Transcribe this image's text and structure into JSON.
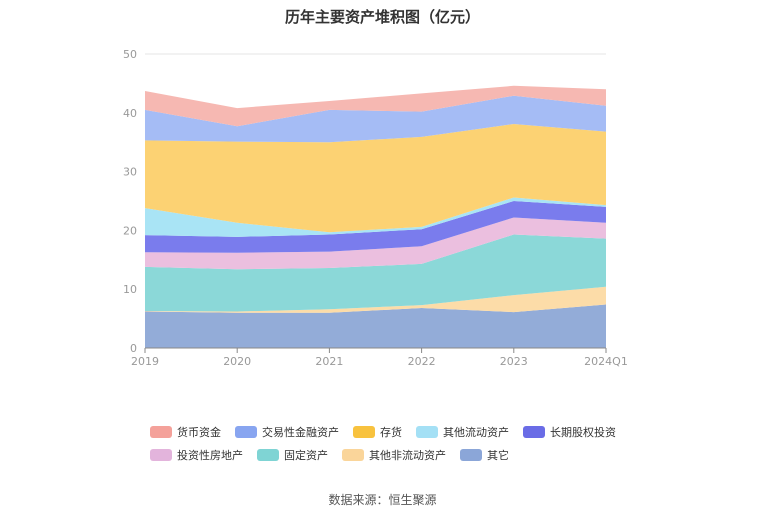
{
  "chart_data": {
    "type": "area",
    "stacked": true,
    "title": "历年主要资产堆积图（亿元）",
    "categories": [
      "2019",
      "2020",
      "2021",
      "2022",
      "2023",
      "2024Q1"
    ],
    "ylim": [
      0,
      50
    ],
    "yticks": [
      0,
      10,
      20,
      30,
      40,
      50
    ],
    "grid": true,
    "legend_position": "bottom",
    "series": [
      {
        "name": "其它",
        "color": "#93acd8",
        "values": [
          6.2,
          6.0,
          6.0,
          6.8,
          6.1,
          7.4
        ]
      },
      {
        "name": "其他非流动资产",
        "color": "#fcdca8",
        "values": [
          0.1,
          0.2,
          0.6,
          0.5,
          2.9,
          3.0
        ]
      },
      {
        "name": "固定资产",
        "color": "#8bd8d8",
        "values": [
          7.5,
          7.2,
          7.0,
          7.0,
          10.3,
          8.2
        ]
      },
      {
        "name": "投资性房地产",
        "color": "#ebbfdf",
        "values": [
          2.5,
          2.8,
          2.8,
          3.0,
          2.9,
          2.7
        ]
      },
      {
        "name": "长期股权投资",
        "color": "#7a7ced",
        "values": [
          2.9,
          2.7,
          2.9,
          2.9,
          2.8,
          2.7
        ]
      },
      {
        "name": "其他流动资产",
        "color": "#a9e4f5",
        "values": [
          4.6,
          2.4,
          0.4,
          0.4,
          0.6,
          0.3
        ]
      },
      {
        "name": "存货",
        "color": "#fcd273",
        "values": [
          11.5,
          13.8,
          15.3,
          15.3,
          12.5,
          12.5
        ]
      },
      {
        "name": "交易性金融资产",
        "color": "#a5bcf5",
        "values": [
          5.2,
          2.6,
          5.5,
          4.3,
          4.8,
          4.4
        ]
      },
      {
        "name": "货币资金",
        "color": "#f6b8b2",
        "values": [
          3.2,
          3.1,
          1.5,
          3.1,
          1.7,
          2.8
        ]
      }
    ]
  },
  "legend": {
    "rows": [
      [
        {
          "label": "货币资金",
          "color": "#f4a19a"
        },
        {
          "label": "交易性金融资产",
          "color": "#88a5f0"
        },
        {
          "label": "存货",
          "color": "#f8c23e"
        },
        {
          "label": "其他流动资产",
          "color": "#a4e0f5"
        },
        {
          "label": "长期股权投资",
          "color": "#6a6ce6"
        }
      ],
      [
        {
          "label": "投资性房地产",
          "color": "#e3b4dc"
        },
        {
          "label": "固定资产",
          "color": "#7fd4d4"
        },
        {
          "label": "其他非流动资产",
          "color": "#fad59a"
        },
        {
          "label": "其它",
          "color": "#8ba6d8"
        }
      ]
    ]
  },
  "source": "数据来源：恒生聚源"
}
